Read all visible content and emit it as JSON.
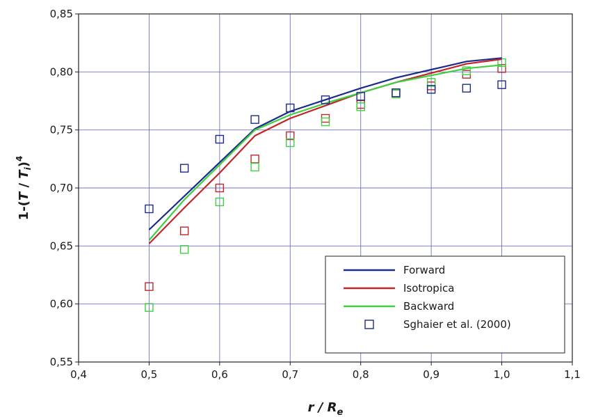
{
  "chart_data": {
    "type": "line",
    "title": "",
    "xlabel": {
      "main": "r / R",
      "sub": "e"
    },
    "ylabel": {
      "prefix": "1-(",
      "T": "T",
      "slash": " / ",
      "Ti": "T",
      "i": "i",
      "close": ")",
      "exp": "4"
    },
    "xlim": [
      0.4,
      1.1
    ],
    "ylim": [
      0.55,
      0.85
    ],
    "xticks": [
      0.4,
      0.5,
      0.6,
      0.7,
      0.8,
      0.9,
      1.0,
      1.1
    ],
    "yticks": [
      0.55,
      0.6,
      0.65,
      0.7,
      0.75,
      0.8,
      0.85
    ],
    "xtick_labels": [
      "0,4",
      "0,5",
      "0,6",
      "0,7",
      "0,8",
      "0,9",
      "1,0",
      "1,1"
    ],
    "ytick_labels": [
      "0,55",
      "0,60",
      "0,65",
      "0,70",
      "0,75",
      "0,80",
      "0,85"
    ],
    "grid": true,
    "legend_position": "bottom-right",
    "series": [
      {
        "name": "Forward",
        "kind": "line",
        "color": "#1c2a8c",
        "x": [
          0.5,
          0.55,
          0.6,
          0.65,
          0.7,
          0.75,
          0.8,
          0.85,
          0.9,
          0.95,
          1.0
        ],
        "y": [
          0.664,
          0.693,
          0.722,
          0.751,
          0.766,
          0.776,
          0.786,
          0.795,
          0.802,
          0.809,
          0.812
        ]
      },
      {
        "name": "Isotropica",
        "kind": "line",
        "color": "#c0262c",
        "x": [
          0.5,
          0.55,
          0.6,
          0.65,
          0.7,
          0.75,
          0.8,
          0.85,
          0.9,
          0.95,
          1.0
        ],
        "y": [
          0.652,
          0.683,
          0.713,
          0.745,
          0.76,
          0.771,
          0.782,
          0.791,
          0.799,
          0.807,
          0.811
        ]
      },
      {
        "name": "Backward",
        "kind": "line",
        "color": "#3fcf3f",
        "x": [
          0.5,
          0.55,
          0.6,
          0.65,
          0.7,
          0.75,
          0.8,
          0.85,
          0.9,
          0.95,
          1.0
        ],
        "y": [
          0.655,
          0.69,
          0.72,
          0.75,
          0.763,
          0.773,
          0.782,
          0.791,
          0.797,
          0.803,
          0.806
        ]
      },
      {
        "name": "Sghaier et al. (2000)",
        "kind": "markers",
        "color": "#1c2a8c",
        "x": [
          0.5,
          0.55,
          0.6,
          0.65,
          0.7,
          0.75,
          0.8,
          0.85,
          0.9,
          0.95,
          1.0
        ],
        "y": [
          0.682,
          0.717,
          0.742,
          0.759,
          0.769,
          0.776,
          0.779,
          0.782,
          0.785,
          0.786,
          0.789
        ]
      }
    ],
    "extra_markers": [
      {
        "color": "#c0262c",
        "x": [
          0.5,
          0.55,
          0.6,
          0.65,
          0.7,
          0.75,
          0.8,
          0.85,
          0.9,
          0.95,
          1.0
        ],
        "y": [
          0.615,
          0.663,
          0.7,
          0.725,
          0.745,
          0.76,
          0.772,
          0.782,
          0.788,
          0.798,
          0.803
        ]
      },
      {
        "color": "#3fcf3f",
        "x": [
          0.5,
          0.55,
          0.6,
          0.65,
          0.7,
          0.75,
          0.8,
          0.85,
          0.9,
          0.95,
          1.0
        ],
        "y": [
          0.597,
          0.647,
          0.688,
          0.718,
          0.739,
          0.757,
          0.77,
          0.781,
          0.791,
          0.801,
          0.808
        ]
      }
    ]
  }
}
